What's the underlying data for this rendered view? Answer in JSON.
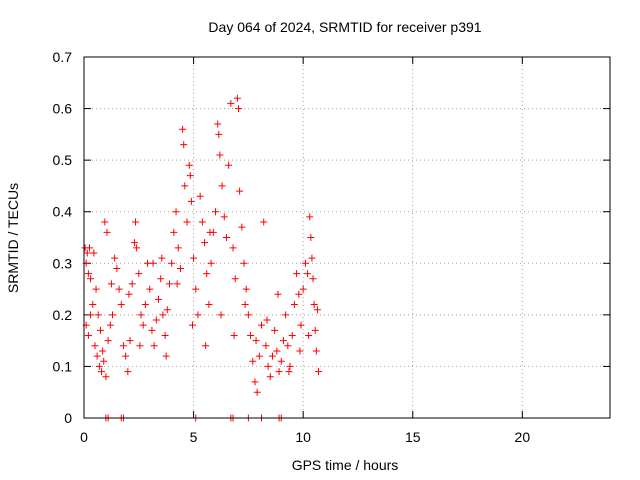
{
  "chart_data": {
    "type": "scatter",
    "title": "Day 064 of 2024, SRMTID for receiver p391",
    "xlabel": "GPS time / hours",
    "ylabel": "SRMTID / TECUs",
    "xlim": [
      0,
      24
    ],
    "ylim": [
      0,
      0.7
    ],
    "xticks": [
      0,
      5,
      10,
      15,
      20
    ],
    "yticks": [
      0,
      0.1,
      0.2,
      0.3,
      0.4,
      0.5,
      0.6,
      0.7
    ],
    "xtick_labels": [
      "0",
      "5",
      "10",
      "15",
      "20"
    ],
    "ytick_labels": [
      "0",
      "0.1",
      "0.2",
      "0.3",
      "0.4",
      "0.5",
      "0.6",
      "0.7"
    ],
    "grid": true,
    "marker": "+",
    "marker_color": "#ff0000",
    "series": [
      {
        "name": "SRMTID",
        "points": [
          [
            0.05,
            0.33
          ],
          [
            0.1,
            0.3
          ],
          [
            0.15,
            0.32
          ],
          [
            0.2,
            0.28
          ],
          [
            0.25,
            0.33
          ],
          [
            0.3,
            0.27
          ],
          [
            0.1,
            0.18
          ],
          [
            0.2,
            0.16
          ],
          [
            0.3,
            0.2
          ],
          [
            0.4,
            0.22
          ],
          [
            0.5,
            0.14
          ],
          [
            0.6,
            0.12
          ],
          [
            0.7,
            0.1
          ],
          [
            0.8,
            0.09
          ],
          [
            0.9,
            0.11
          ],
          [
            1.0,
            0.08
          ],
          [
            0.55,
            0.25
          ],
          [
            0.65,
            0.2
          ],
          [
            0.75,
            0.17
          ],
          [
            0.85,
            0.13
          ],
          [
            0.95,
            0.38
          ],
          [
            1.05,
            0.36
          ],
          [
            1.1,
            0.15
          ],
          [
            1.2,
            0.18
          ],
          [
            1.3,
            0.2
          ],
          [
            1.4,
            0.31
          ],
          [
            1.5,
            0.29
          ],
          [
            1.6,
            0.25
          ],
          [
            1.7,
            0.22
          ],
          [
            1.8,
            0.14
          ],
          [
            1.9,
            0.12
          ],
          [
            2.0,
            0.09
          ],
          [
            2.1,
            0.15
          ],
          [
            2.2,
            0.26
          ],
          [
            2.3,
            0.34
          ],
          [
            2.35,
            0.38
          ],
          [
            2.4,
            0.33
          ],
          [
            2.5,
            0.28
          ],
          [
            2.6,
            0.2
          ],
          [
            2.7,
            0.18
          ],
          [
            2.8,
            0.22
          ],
          [
            2.9,
            0.3
          ],
          [
            3.0,
            0.25
          ],
          [
            3.1,
            0.17
          ],
          [
            3.2,
            0.14
          ],
          [
            3.3,
            0.19
          ],
          [
            3.4,
            0.23
          ],
          [
            3.5,
            0.27
          ],
          [
            3.6,
            0.2
          ],
          [
            3.7,
            0.16
          ],
          [
            3.8,
            0.21
          ],
          [
            3.9,
            0.26
          ],
          [
            4.0,
            0.3
          ],
          [
            4.1,
            0.36
          ],
          [
            4.2,
            0.4
          ],
          [
            4.3,
            0.33
          ],
          [
            4.4,
            0.29
          ],
          [
            4.5,
            0.56
          ],
          [
            4.55,
            0.53
          ],
          [
            4.6,
            0.45
          ],
          [
            4.7,
            0.38
          ],
          [
            4.8,
            0.49
          ],
          [
            4.85,
            0.47
          ],
          [
            4.9,
            0.42
          ],
          [
            5.0,
            0.31
          ],
          [
            5.1,
            0.25
          ],
          [
            5.2,
            0.2
          ],
          [
            5.3,
            0.43
          ],
          [
            5.4,
            0.38
          ],
          [
            5.5,
            0.34
          ],
          [
            5.6,
            0.28
          ],
          [
            5.7,
            0.22
          ],
          [
            5.8,
            0.3
          ],
          [
            5.9,
            0.36
          ],
          [
            6.0,
            0.4
          ],
          [
            6.1,
            0.57
          ],
          [
            6.15,
            0.55
          ],
          [
            6.2,
            0.51
          ],
          [
            6.3,
            0.45
          ],
          [
            6.4,
            0.39
          ],
          [
            6.5,
            0.35
          ],
          [
            6.6,
            0.49
          ],
          [
            6.7,
            0.61
          ],
          [
            6.8,
            0.33
          ],
          [
            6.9,
            0.27
          ],
          [
            7.0,
            0.62
          ],
          [
            7.05,
            0.6
          ],
          [
            7.1,
            0.44
          ],
          [
            7.2,
            0.37
          ],
          [
            7.3,
            0.3
          ],
          [
            7.4,
            0.25
          ],
          [
            7.5,
            0.2
          ],
          [
            7.6,
            0.16
          ],
          [
            7.7,
            0.11
          ],
          [
            7.8,
            0.07
          ],
          [
            7.9,
            0.05
          ],
          [
            8.0,
            0.12
          ],
          [
            8.1,
            0.18
          ],
          [
            8.2,
            0.38
          ],
          [
            8.3,
            0.14
          ],
          [
            8.4,
            0.1
          ],
          [
            8.5,
            0.08
          ],
          [
            8.6,
            0.12
          ],
          [
            8.7,
            0.17
          ],
          [
            8.8,
            0.13
          ],
          [
            8.9,
            0.09
          ],
          [
            9.0,
            0.11
          ],
          [
            9.1,
            0.15
          ],
          [
            9.2,
            0.2
          ],
          [
            9.3,
            0.14
          ],
          [
            9.4,
            0.1
          ],
          [
            9.5,
            0.16
          ],
          [
            9.6,
            0.22
          ],
          [
            9.7,
            0.28
          ],
          [
            9.8,
            0.24
          ],
          [
            9.9,
            0.18
          ],
          [
            10.0,
            0.25
          ],
          [
            10.1,
            0.3
          ],
          [
            10.2,
            0.28
          ],
          [
            10.3,
            0.39
          ],
          [
            10.35,
            0.35
          ],
          [
            10.4,
            0.31
          ],
          [
            10.45,
            0.27
          ],
          [
            10.5,
            0.22
          ],
          [
            10.55,
            0.17
          ],
          [
            10.6,
            0.13
          ],
          [
            10.65,
            0.21
          ],
          [
            10.7,
            0.09
          ],
          [
            0.45,
            0.32
          ],
          [
            1.25,
            0.26
          ],
          [
            2.05,
            0.24
          ],
          [
            2.55,
            0.14
          ],
          [
            3.15,
            0.3
          ],
          [
            3.75,
            0.12
          ],
          [
            4.25,
            0.26
          ],
          [
            4.95,
            0.18
          ],
          [
            5.55,
            0.14
          ],
          [
            6.25,
            0.2
          ],
          [
            6.85,
            0.16
          ],
          [
            7.35,
            0.22
          ],
          [
            7.85,
            0.15
          ],
          [
            8.35,
            0.19
          ],
          [
            8.85,
            0.24
          ],
          [
            9.35,
            0.09
          ],
          [
            9.85,
            0.13
          ],
          [
            10.25,
            0.16
          ],
          [
            3.55,
            0.31
          ],
          [
            5.75,
            0.36
          ]
        ]
      }
    ],
    "axis_points": [
      1.0,
      1.1,
      1.7,
      1.8,
      5.1,
      6.7,
      6.8,
      7.5,
      8.1,
      8.9,
      9.0
    ]
  }
}
